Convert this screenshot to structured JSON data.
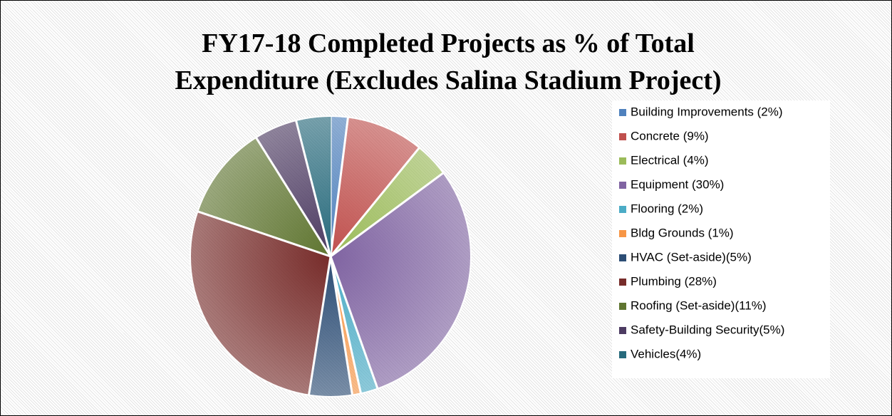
{
  "chart_data": {
    "type": "pie",
    "title": [
      "FY17-18 Completed Projects as % of Total",
      "Expenditure (Excludes Salina Stadium Project)"
    ],
    "categories": [
      "Building Improvements (2%)",
      "Concrete (9%)",
      "Electrical (4%)",
      "Equipment (30%)",
      "Flooring (2%)",
      "Bldg Grounds (1%)",
      "HVAC (Set-aside)(5%)",
      "Plumbing (28%)",
      "Roofing (Set-aside)(11%)",
      "Safety-Building Security(5%)",
      "Vehicles(4%)"
    ],
    "values": [
      2,
      9,
      4,
      30,
      2,
      1,
      5,
      28,
      11,
      5,
      4
    ],
    "colors": [
      "#4f81bd",
      "#c0504d",
      "#9bbb59",
      "#8064a2",
      "#4bacc6",
      "#f79646",
      "#2c4d75",
      "#772c2a",
      "#5f7530",
      "#4d3b62",
      "#276a7c"
    ],
    "legend": "right"
  }
}
